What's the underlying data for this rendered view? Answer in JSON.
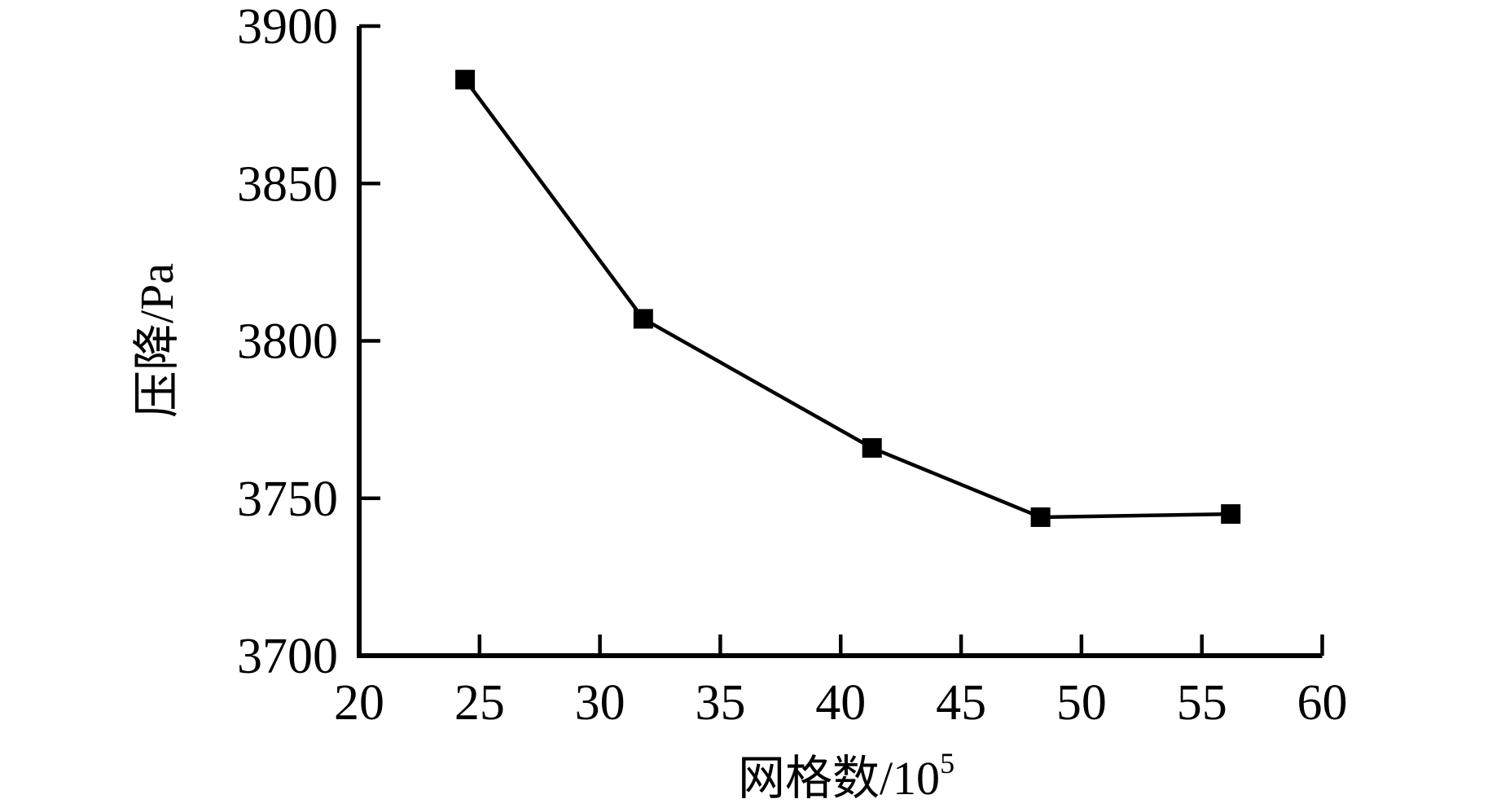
{
  "colors": {
    "foreground": "#000000",
    "background": "#ffffff"
  },
  "chart_data": {
    "type": "line",
    "title": "",
    "xlabel": {
      "text": "网格数/10",
      "superscript": "5"
    },
    "ylabel": "压降/Pa",
    "xlim": [
      20,
      60
    ],
    "ylim": [
      3700,
      3900
    ],
    "x_ticks": [
      20,
      25,
      30,
      35,
      40,
      45,
      50,
      55,
      60
    ],
    "y_ticks": [
      3700,
      3750,
      3800,
      3850,
      3900
    ],
    "grid": false,
    "legend_position": "none",
    "series": [
      {
        "name": "压降",
        "marker": "filled-square",
        "color": "#000000",
        "points": [
          {
            "x": 24.4,
            "y": 3883
          },
          {
            "x": 31.8,
            "y": 3807
          },
          {
            "x": 41.3,
            "y": 3766
          },
          {
            "x": 48.3,
            "y": 3744
          },
          {
            "x": 56.2,
            "y": 3745
          }
        ]
      }
    ]
  }
}
